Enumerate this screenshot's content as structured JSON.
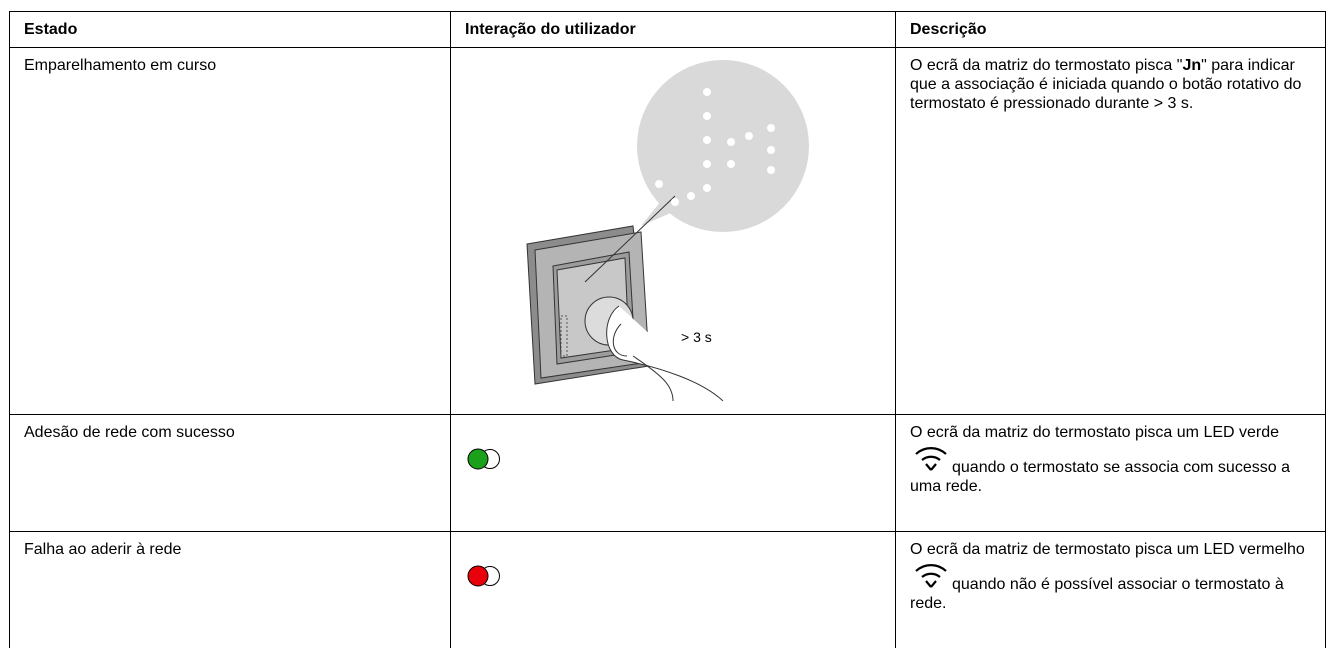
{
  "table": {
    "header": [
      "Estado",
      "Interação do utilizador",
      "Descrição"
    ],
    "rows": [
      {
        "state": "Emparelhamento em curso",
        "illustration_label": "> 3 s",
        "description": {
          "before": "O ecrã da matriz do termostato pisca \"",
          "bold": "Jn",
          "after": "\" para indicar que a associação é iniciada quando o botão rotativo do termostato é pressionado durante > 3 s."
        }
      },
      {
        "state": "Adesão de rede com sucesso",
        "description": {
          "before": "O ecrã da matriz do termostato pisca um LED verde",
          "after": "quando o termostato se associa com sucesso a uma rede."
        }
      },
      {
        "state": "Falha ao aderir à rede",
        "description": {
          "before": "O ecrã da matriz de termostato pisca um LED vermelho",
          "after": "quando não é possível associar o termostato à rede."
        }
      }
    ]
  }
}
